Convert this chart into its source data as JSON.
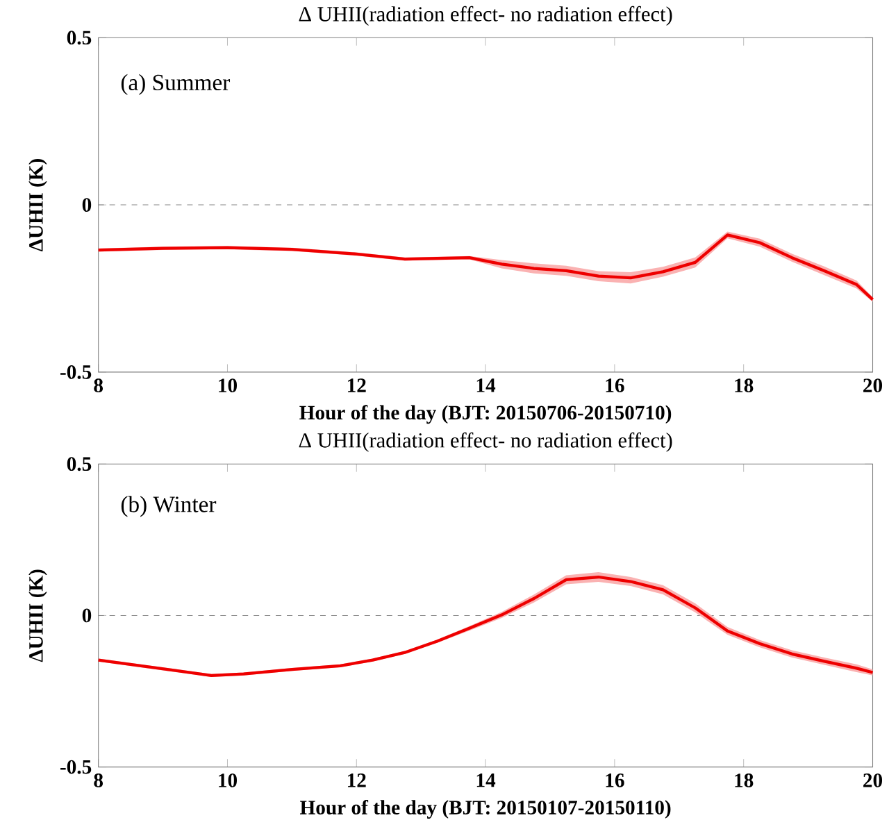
{
  "chart_data": [
    {
      "type": "line",
      "title": "Δ UHII(radiation effect- no radiation effect)",
      "xlabel": "Hour of the day (BJT: 20150706-20150710)",
      "ylabel": "ΔUHII (K)",
      "annotations": [
        "(a) Summer"
      ],
      "x": [
        8,
        9,
        10,
        11,
        12,
        12.75,
        13.75,
        14.25,
        14.75,
        15.25,
        15.75,
        16.25,
        16.75,
        17.25,
        17.75,
        18.25,
        18.75,
        19.25,
        19.75,
        20
      ],
      "series": [
        {
          "color": "#ee0000",
          "line_style": "solid",
          "values": [
            -0.135,
            -0.13,
            -0.128,
            -0.133,
            -0.147,
            -0.162,
            -0.158,
            -0.177,
            -0.19,
            -0.197,
            -0.213,
            -0.218,
            -0.2,
            -0.172,
            -0.09,
            -0.113,
            -0.158,
            -0.197,
            -0.238,
            -0.283
          ],
          "lower": [
            -0.14,
            -0.135,
            -0.133,
            -0.138,
            -0.152,
            -0.167,
            -0.163,
            -0.19,
            -0.205,
            -0.212,
            -0.228,
            -0.235,
            -0.215,
            -0.187,
            -0.1,
            -0.125,
            -0.17,
            -0.21,
            -0.25,
            -0.29
          ],
          "upper": [
            -0.13,
            -0.125,
            -0.123,
            -0.128,
            -0.142,
            -0.157,
            -0.153,
            -0.165,
            -0.175,
            -0.182,
            -0.198,
            -0.201,
            -0.185,
            -0.157,
            -0.08,
            -0.101,
            -0.146,
            -0.184,
            -0.226,
            -0.276
          ]
        }
      ],
      "xlim": [
        8,
        20
      ],
      "ylim": [
        -0.5,
        0.5
      ],
      "xticks": [
        8,
        10,
        12,
        14,
        16,
        18,
        20
      ],
      "yticks": [
        -0.5,
        0,
        0.5
      ],
      "ref_lines": [
        {
          "axis": "y",
          "value": 0,
          "color": "#888888",
          "line_style": "dashed"
        }
      ]
    },
    {
      "type": "line",
      "title": "Δ UHII(radiation effect- no radiation effect)",
      "xlabel": "Hour of the day (BJT: 20150107-20150110)",
      "ylabel": "ΔUHII (K)",
      "annotations": [
        "(b) Winter"
      ],
      "x": [
        8,
        9.75,
        10.25,
        11,
        11.75,
        12.25,
        12.75,
        13.25,
        13.75,
        14.25,
        14.75,
        15.25,
        15.75,
        16.25,
        16.75,
        17.25,
        17.75,
        18.25,
        18.75,
        19.25,
        19.75,
        20
      ],
      "series": [
        {
          "color": "#ee0000",
          "line_style": "solid",
          "values": [
            -0.147,
            -0.198,
            -0.193,
            -0.178,
            -0.166,
            -0.147,
            -0.122,
            -0.085,
            -0.042,
            0.002,
            0.056,
            0.118,
            0.127,
            0.112,
            0.085,
            0.025,
            -0.051,
            -0.093,
            -0.127,
            -0.151,
            -0.174,
            -0.188
          ],
          "lower": [
            -0.152,
            -0.203,
            -0.198,
            -0.183,
            -0.171,
            -0.152,
            -0.127,
            -0.09,
            -0.05,
            -0.008,
            0.043,
            0.103,
            0.111,
            0.097,
            0.07,
            0.01,
            -0.064,
            -0.105,
            -0.139,
            -0.163,
            -0.187,
            -0.198
          ],
          "upper": [
            -0.142,
            -0.193,
            -0.188,
            -0.173,
            -0.161,
            -0.142,
            -0.117,
            -0.08,
            -0.035,
            0.012,
            0.069,
            0.133,
            0.143,
            0.127,
            0.1,
            0.04,
            -0.038,
            -0.081,
            -0.115,
            -0.139,
            -0.161,
            -0.178
          ]
        }
      ],
      "xlim": [
        8,
        20
      ],
      "ylim": [
        -0.5,
        0.5
      ],
      "xticks": [
        8,
        10,
        12,
        14,
        16,
        18,
        20
      ],
      "yticks": [
        -0.5,
        0,
        0.5
      ],
      "ref_lines": [
        {
          "axis": "y",
          "value": 0,
          "color": "#888888",
          "line_style": "dashed"
        }
      ]
    }
  ]
}
